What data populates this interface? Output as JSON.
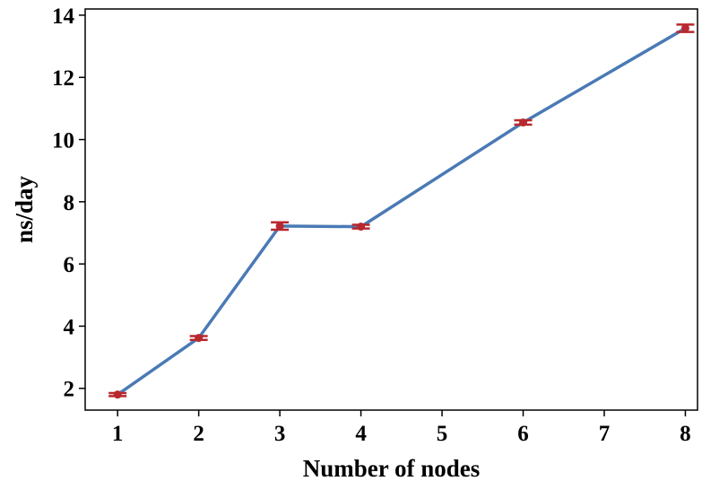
{
  "chart_data": {
    "type": "line",
    "xlabel": "Number of nodes",
    "ylabel": "ns/day",
    "x": [
      1,
      2,
      3,
      4,
      6,
      8
    ],
    "x_ticks": [
      1,
      2,
      3,
      4,
      5,
      6,
      7,
      8
    ],
    "y_ticks": [
      2,
      4,
      6,
      8,
      10,
      12,
      14
    ],
    "xlim": [
      0.6,
      8.15
    ],
    "ylim": [
      1.3,
      14.2
    ],
    "series": [
      {
        "values": [
          1.8,
          3.62,
          7.22,
          7.2,
          10.55,
          13.58
        ],
        "errors": [
          0.05,
          0.06,
          0.12,
          0.06,
          0.07,
          0.12
        ],
        "line_color": "#4a7ab5",
        "marker_color": "#b8282e"
      }
    ],
    "grid": false,
    "legend": "none"
  }
}
